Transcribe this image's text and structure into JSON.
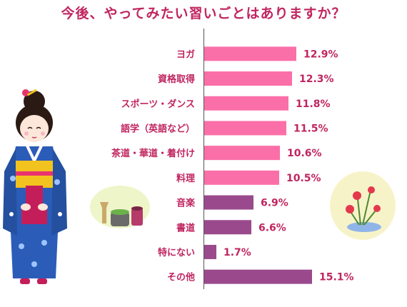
{
  "chart_data": {
    "type": "bar",
    "orientation": "horizontal",
    "title": "今後、やってみたい習いごとはありますか？",
    "categories": [
      "ヨガ",
      "資格取得",
      "スポーツ・ダンス",
      "語学（英語など）",
      "茶道・華道・着付け",
      "料理",
      "音楽",
      "書道",
      "特にない",
      "その他"
    ],
    "values": [
      12.9,
      12.3,
      11.8,
      11.5,
      10.6,
      10.5,
      6.9,
      6.6,
      1.7,
      15.1
    ],
    "value_labels": [
      "12.9%",
      "12.3%",
      "11.8%",
      "11.5%",
      "10.6%",
      "10.5%",
      "6.9%",
      "6.6%",
      "1.7%",
      "15.1%"
    ],
    "xlim": [
      0,
      18
    ],
    "grid": false,
    "colors": {
      "highlight": "#fb6fa8",
      "other": "#9a4a8c",
      "text": "#c0255f",
      "axis": "#555555"
    },
    "highlight_count": 6
  },
  "decorations": {
    "left_figure": "kimono-woman-illustration",
    "tea_set": "tea-ceremony-set-illustration",
    "ikebana": "flower-arrangement-illustration"
  }
}
